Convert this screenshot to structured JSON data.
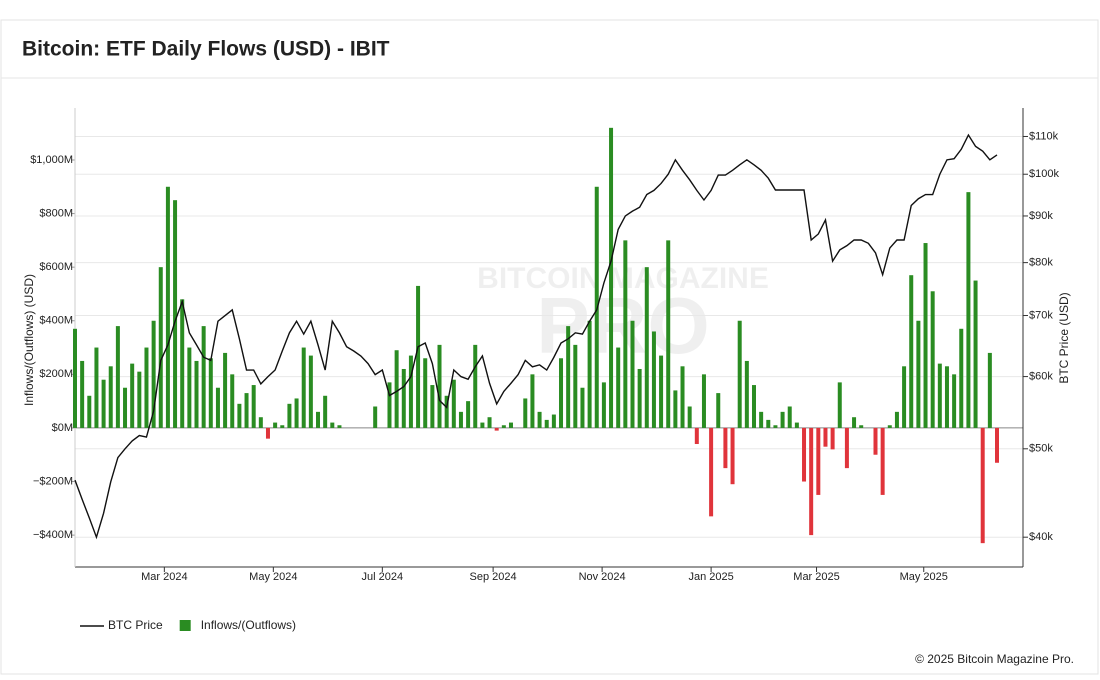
{
  "chart_data": {
    "type": "combo",
    "title": "Bitcoin: ETF Daily Flows (USD) - IBIT",
    "watermark": [
      "BITCOIN MAGAZINE",
      "PRO"
    ],
    "footer": "© 2025 Bitcoin Magazine Pro.",
    "ylabel": "Inflows/(Outflows) (USD)",
    "y2label": "BTC Price (USD)",
    "xlim": [
      0,
      129
    ],
    "xticks": [
      {
        "value": 12.5,
        "label": "Mar 2024"
      },
      {
        "value": 27.75,
        "label": "May 2024"
      },
      {
        "value": 43,
        "label": "Jul 2024"
      },
      {
        "value": 58.5,
        "label": "Sep 2024"
      },
      {
        "value": 73.75,
        "label": "Nov 2024"
      },
      {
        "value": 89,
        "label": "Jan 2025"
      },
      {
        "value": 103.75,
        "label": "Mar 2025"
      },
      {
        "value": 118.75,
        "label": "May 2025"
      }
    ],
    "ylim": [
      -519,
      1194
    ],
    "yticks": [
      {
        "value": 1000,
        "label": "$1,000M"
      },
      {
        "value": 800,
        "label": "$800M"
      },
      {
        "value": 600,
        "label": "$600M"
      },
      {
        "value": 400,
        "label": "$400M"
      },
      {
        "value": 200,
        "label": "$200M"
      },
      {
        "value": 0,
        "label": "$0M"
      },
      {
        "value": -200,
        "label": "−$200M"
      },
      {
        "value": -400,
        "label": "−$400M"
      }
    ],
    "y2lim": [
      37100,
      118200
    ],
    "y2log": true,
    "y2ticks": [
      {
        "value": 110000,
        "label": "$110k"
      },
      {
        "value": 100000,
        "label": "$100k"
      },
      {
        "value": 90000,
        "label": "$90k"
      },
      {
        "value": 80000,
        "label": "$80k"
      },
      {
        "value": 70000,
        "label": "$70k"
      },
      {
        "value": 60000,
        "label": "$60k"
      },
      {
        "value": 50000,
        "label": "$50k"
      },
      {
        "value": 40000,
        "label": "$40k"
      }
    ],
    "grid": true,
    "legend": "bottom-left",
    "series": [
      {
        "name": "BTC Price",
        "type": "line",
        "axis": "y2",
        "color": "#111111",
        "values": [
          46200,
          44000,
          42000,
          40000,
          42500,
          46000,
          48900,
          50000,
          51000,
          51700,
          51500,
          55000,
          62500,
          65000,
          69000,
          72500,
          67000,
          65000,
          63000,
          62500,
          69000,
          70000,
          71000,
          66000,
          61000,
          61000,
          58900,
          60000,
          61000,
          64000,
          67000,
          69000,
          66800,
          69000,
          65000,
          61000,
          69000,
          67000,
          64700,
          64000,
          63200,
          62000,
          60300,
          61000,
          57200,
          57800,
          58500,
          60000,
          64700,
          65300,
          62000,
          56500,
          55500,
          61000,
          60000,
          59600,
          61500,
          63200,
          59000,
          56000,
          57800,
          59000,
          60300,
          62500,
          61500,
          61800,
          61000,
          63000,
          65300,
          66000,
          67000,
          66800,
          69000,
          71000,
          76000,
          80300,
          87000,
          90000,
          91100,
          92000,
          95000,
          96000,
          97700,
          100000,
          103700,
          101000,
          98600,
          96000,
          93700,
          96000,
          99800,
          99800,
          101000,
          102400,
          103700,
          102400,
          101000,
          99000,
          96100,
          96100,
          96100,
          96100,
          96100,
          84700,
          86000,
          89100,
          80300,
          82600,
          83500,
          84700,
          84700,
          84000,
          82000,
          77600,
          83000,
          84700,
          84700,
          92400,
          94000,
          95000,
          95000,
          100000,
          103700,
          104000,
          106500,
          110400,
          107300,
          106000,
          103700,
          105000
        ]
      },
      {
        "name": "Inflows/(Outflows)",
        "type": "bar",
        "color": "#2a8c22",
        "negative_color": "#e0343b",
        "values": [
          370,
          250,
          120,
          300,
          180,
          230,
          380,
          150,
          240,
          210,
          300,
          400,
          600,
          900,
          850,
          480,
          300,
          250,
          380,
          260,
          150,
          280,
          200,
          90,
          130,
          160,
          40,
          -40,
          20,
          10,
          90,
          110,
          300,
          270,
          60,
          120,
          20,
          10,
          0,
          0,
          0,
          0,
          80,
          0,
          170,
          290,
          220,
          270,
          530,
          260,
          160,
          310,
          120,
          180,
          60,
          100,
          310,
          20,
          40,
          -10,
          10,
          20,
          0,
          110,
          200,
          60,
          30,
          50,
          260,
          380,
          310,
          150,
          400,
          900,
          170,
          1120,
          300,
          700,
          400,
          220,
          600,
          360,
          270,
          700,
          140,
          230,
          80,
          -60,
          200,
          -330,
          130,
          -150,
          -210,
          400,
          250,
          160,
          60,
          30,
          10,
          60,
          80,
          20,
          -200,
          -400,
          -250,
          -70,
          -80,
          170,
          -150,
          40,
          10,
          0,
          -100,
          -250,
          10,
          60,
          230,
          570,
          400,
          690,
          510,
          240,
          230,
          200,
          370,
          880,
          550,
          -430,
          280,
          -130
        ]
      }
    ]
  }
}
